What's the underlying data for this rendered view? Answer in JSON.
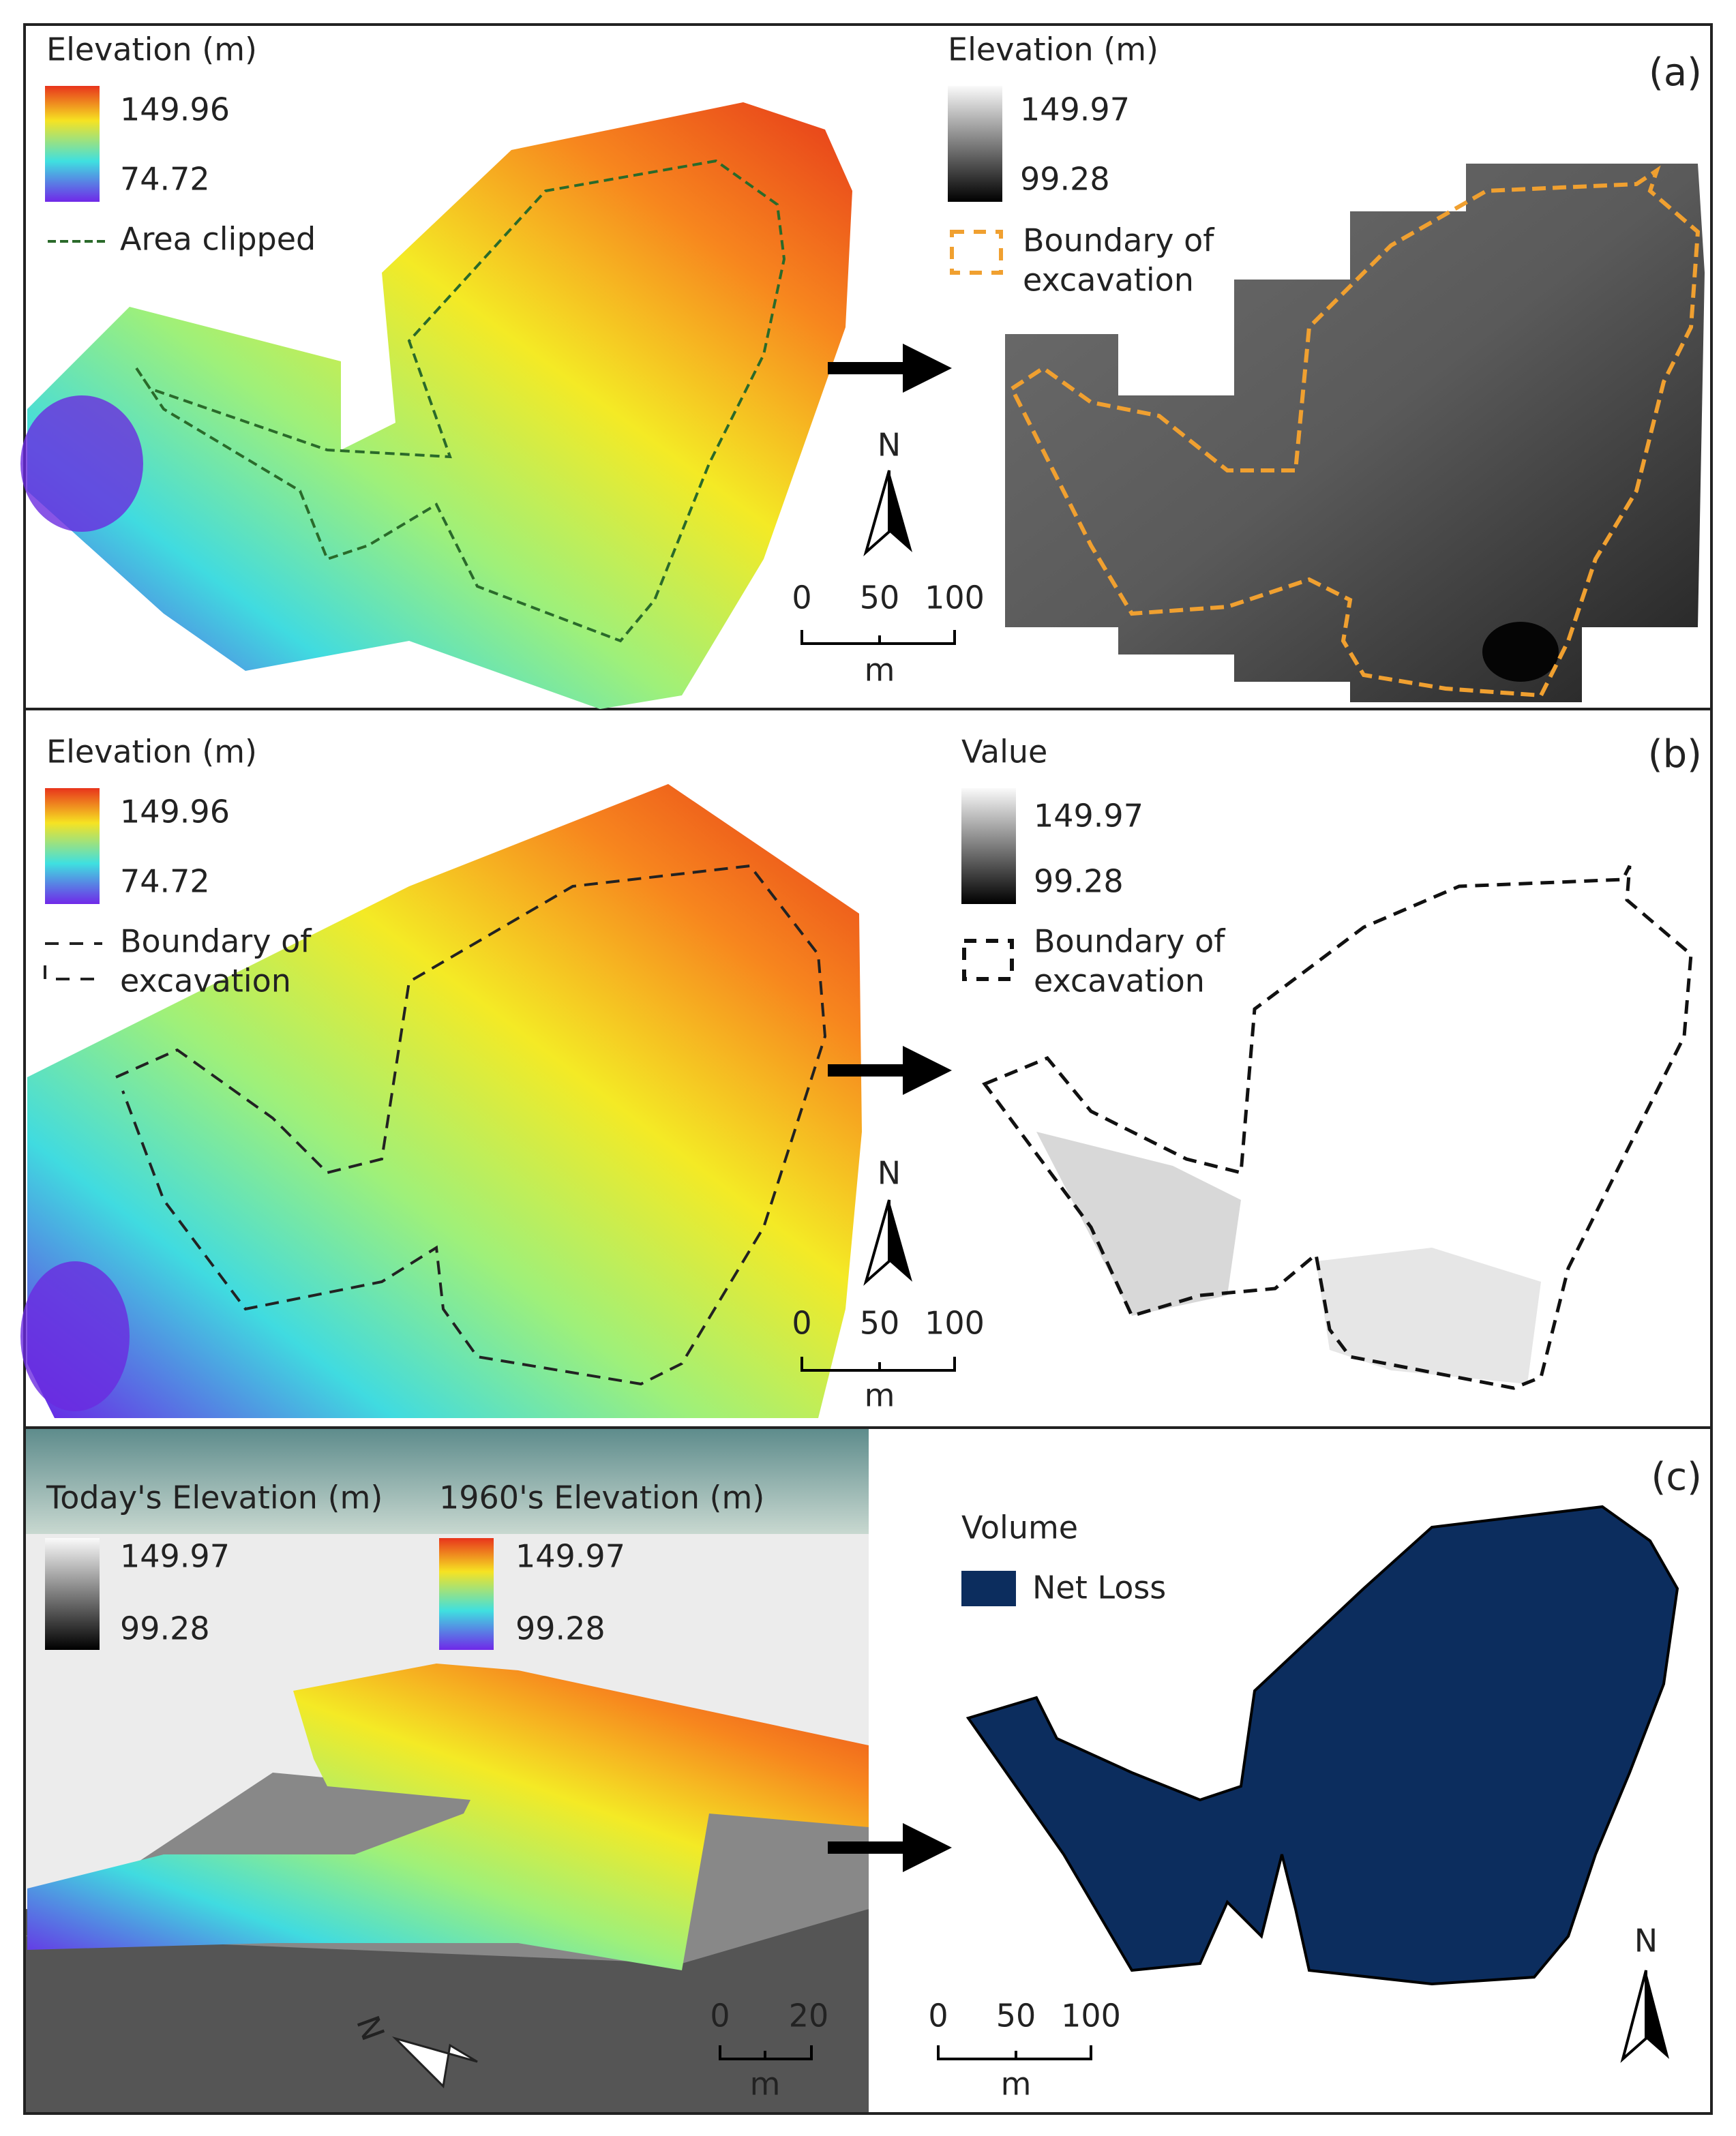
{
  "panels": [
    {
      "label": "(a)",
      "left_legend": {
        "title": "Elevation (m)",
        "max": "149.96",
        "min": "74.72",
        "line": "Area clipped"
      },
      "right_legend": {
        "title": "Elevation (m)",
        "max": "149.97",
        "min": "99.28",
        "line": [
          "Boundary of",
          "excavation"
        ]
      },
      "north": "N",
      "scale": {
        "ticks": [
          "0",
          "50",
          "100"
        ],
        "unit": "m"
      }
    },
    {
      "label": "(b)",
      "left_legend": {
        "title": "Elevation (m)",
        "max": "149.96",
        "min": "74.72",
        "line": [
          "Boundary of",
          "excavation"
        ]
      },
      "right_legend": {
        "title": "Value",
        "max": "149.97",
        "min": "99.28",
        "line": [
          "Boundary of",
          "excavation"
        ]
      },
      "north": "N",
      "scale": {
        "ticks": [
          "0",
          "50",
          "100"
        ],
        "unit": "m"
      }
    },
    {
      "label": "(c)",
      "left_legend": {
        "today_title": "Today's Elevation (m)",
        "today_max": "149.97",
        "today_min": "99.28",
        "past_title": "1960's Elevation (m)",
        "past_max": "149.97",
        "past_min": "99.28",
        "north": "N",
        "scale": {
          "ticks": [
            "0",
            "20"
          ],
          "unit": "m"
        }
      },
      "right_legend": {
        "title": "Volume",
        "item": "Net Loss"
      },
      "north": "N",
      "scale": {
        "ticks": [
          "0",
          "50",
          "100"
        ],
        "unit": "m"
      }
    }
  ]
}
